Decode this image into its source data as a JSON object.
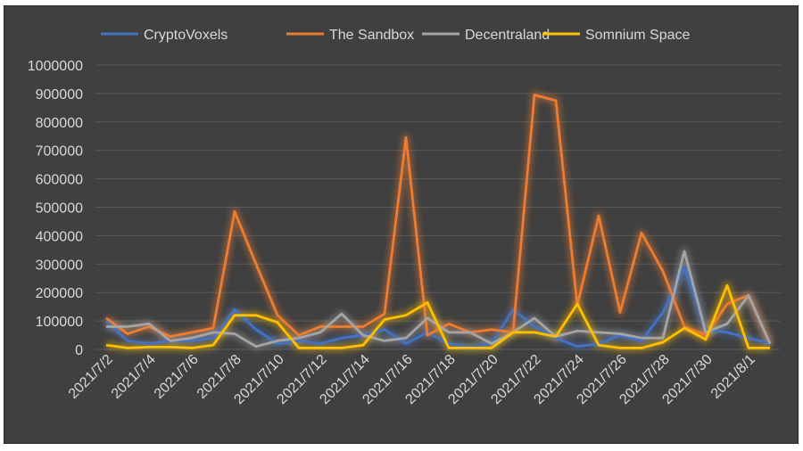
{
  "chart_data": {
    "type": "line",
    "title": "",
    "xlabel": "",
    "ylabel": "",
    "ylim": [
      0,
      1000000
    ],
    "yticks": [
      "0",
      "100000",
      "200000",
      "300000",
      "400000",
      "500000",
      "600000",
      "700000",
      "800000",
      "900000",
      "1000000"
    ],
    "grid": true,
    "legend_position": "top",
    "x_tick_labels": [
      "2021/7/2",
      "2021/7/4",
      "2021/7/6",
      "2021/7/8",
      "2021/7/10",
      "2021/7/12",
      "2021/7/14",
      "2021/7/16",
      "2021/7/18",
      "2021/7/20",
      "2021/7/22",
      "2021/7/24",
      "2021/7/26",
      "2021/7/28",
      "2021/7/30",
      "2021/8/1"
    ],
    "x": [
      "2021/7/2",
      "2021/7/3",
      "2021/7/4",
      "2021/7/5",
      "2021/7/6",
      "2021/7/7",
      "2021/7/8",
      "2021/7/9",
      "2021/7/10",
      "2021/7/11",
      "2021/7/12",
      "2021/7/13",
      "2021/7/14",
      "2021/7/15",
      "2021/7/16",
      "2021/7/17",
      "2021/7/18",
      "2021/7/19",
      "2021/7/20",
      "2021/7/21",
      "2021/7/22",
      "2021/7/23",
      "2021/7/24",
      "2021/7/25",
      "2021/7/26",
      "2021/7/27",
      "2021/7/28",
      "2021/7/29",
      "2021/7/30",
      "2021/7/31",
      "2021/8/1",
      "2021/8/2"
    ],
    "series": [
      {
        "name": "CryptoVoxels",
        "color": "#4472c4",
        "values": [
          100000,
          30000,
          20000,
          30000,
          30000,
          40000,
          140000,
          70000,
          20000,
          30000,
          20000,
          40000,
          50000,
          70000,
          20000,
          60000,
          20000,
          10000,
          20000,
          140000,
          80000,
          40000,
          10000,
          20000,
          50000,
          30000,
          130000,
          290000,
          70000,
          60000,
          40000,
          20000
        ]
      },
      {
        "name": "The Sandbox",
        "color": "#ed7d31",
        "values": [
          110000,
          55000,
          80000,
          45000,
          60000,
          75000,
          485000,
          300000,
          120000,
          50000,
          80000,
          80000,
          80000,
          125000,
          745000,
          50000,
          90000,
          60000,
          70000,
          60000,
          895000,
          875000,
          155000,
          470000,
          130000,
          410000,
          275000,
          80000,
          50000,
          160000,
          190000,
          20000
        ]
      },
      {
        "name": "Decentraland",
        "color": "#a5a5a5",
        "values": [
          80000,
          80000,
          90000,
          30000,
          40000,
          60000,
          55000,
          10000,
          30000,
          40000,
          60000,
          125000,
          50000,
          30000,
          40000,
          110000,
          60000,
          60000,
          20000,
          60000,
          110000,
          45000,
          65000,
          60000,
          55000,
          40000,
          40000,
          345000,
          60000,
          90000,
          190000,
          20000
        ]
      },
      {
        "name": "Somnium Space",
        "color": "#ffc000",
        "values": [
          15000,
          5000,
          8000,
          8000,
          5000,
          15000,
          120000,
          120000,
          95000,
          5000,
          5000,
          5000,
          15000,
          105000,
          120000,
          165000,
          5000,
          5000,
          5000,
          60000,
          60000,
          45000,
          160000,
          15000,
          5000,
          5000,
          25000,
          75000,
          35000,
          225000,
          5000,
          5000
        ]
      }
    ]
  }
}
